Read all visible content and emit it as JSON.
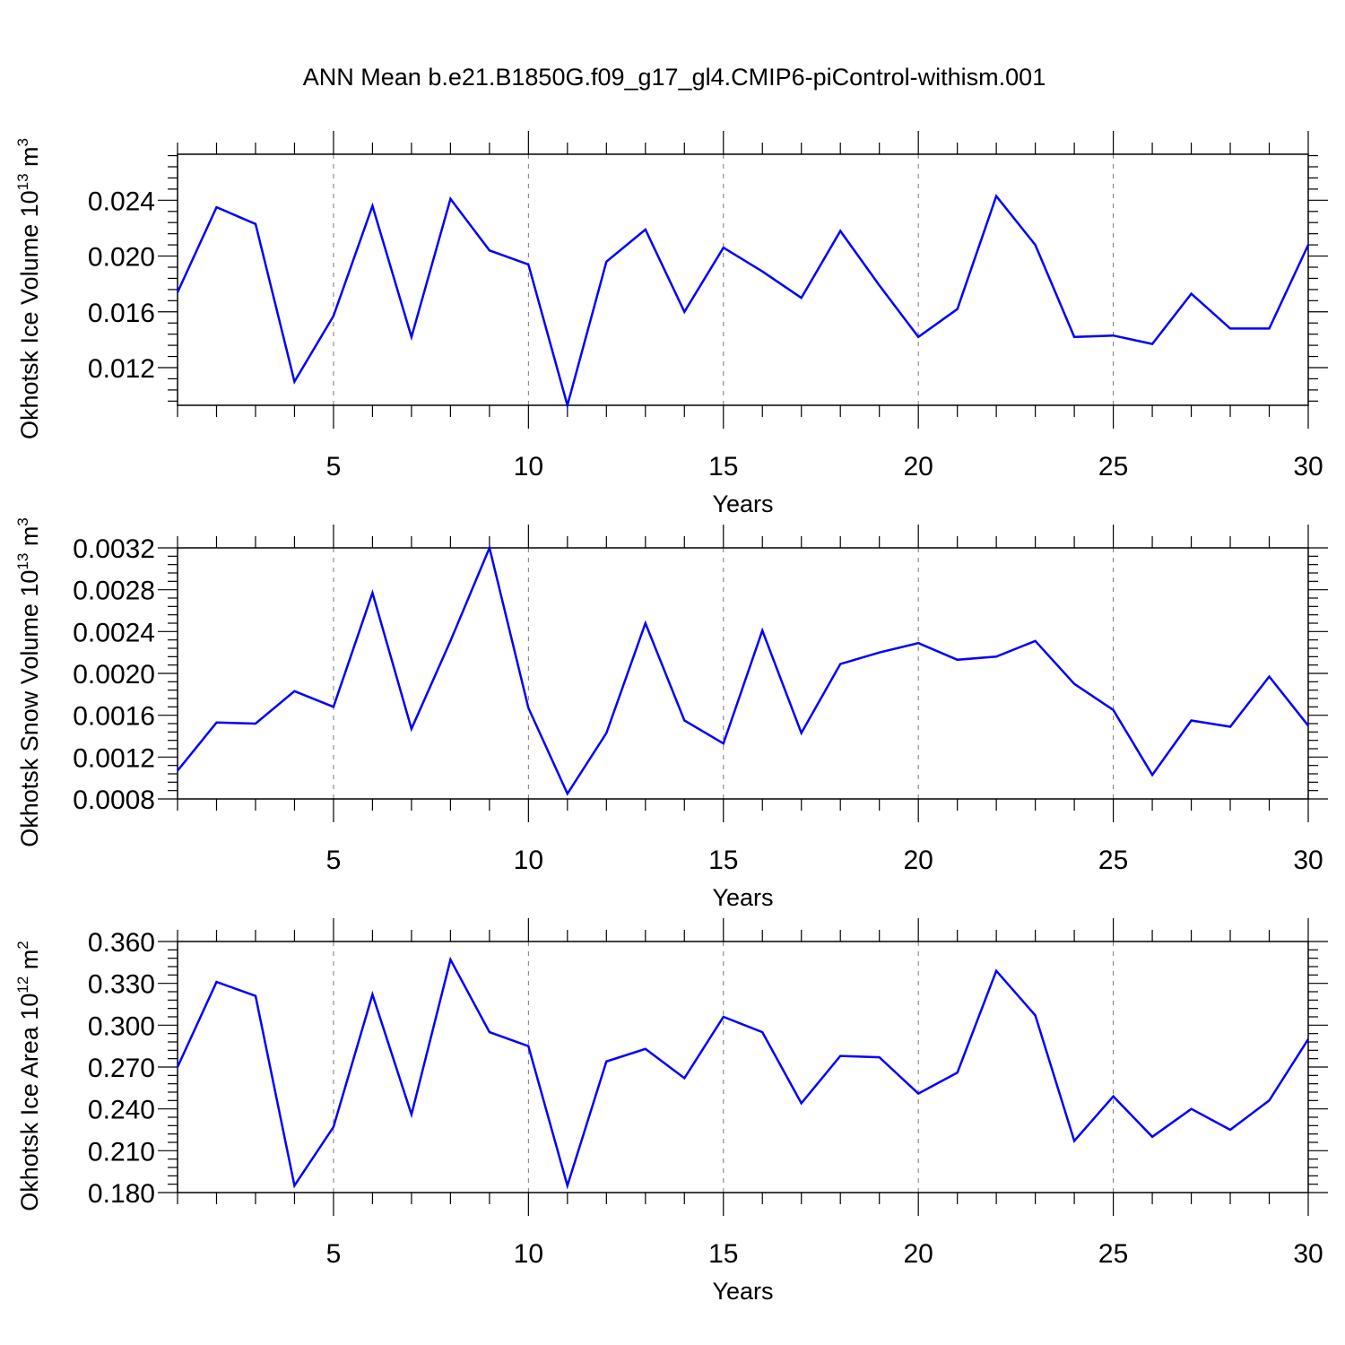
{
  "title": "ANN Mean b.e21.B1850G.f09_g17_gl4.CMIP6-piControl-withism.001",
  "colors": {
    "line": "#0000ff",
    "axis": "#000000",
    "grid": "#777777"
  },
  "chart_data": [
    {
      "type": "line",
      "title": "",
      "xlabel": "Years",
      "ylabel": "Okhotsk Ice Volume 10",
      "ylabel_exp": "13",
      "ylabel_unit": " m",
      "ylabel_unit_exp": "3",
      "xlim": [
        1,
        30
      ],
      "ylim": [
        0.0093,
        0.0273
      ],
      "xticks": [
        5,
        10,
        15,
        20,
        25,
        30
      ],
      "yticks": [
        0.012,
        0.016,
        0.02,
        0.024
      ],
      "ytick_labels": [
        "0.012",
        "0.016",
        "0.020",
        "0.024"
      ],
      "grid": "vertical dashed at major x ticks",
      "x": [
        1,
        2,
        3,
        4,
        5,
        6,
        7,
        8,
        9,
        10,
        11,
        12,
        13,
        14,
        15,
        16,
        17,
        18,
        19,
        20,
        21,
        22,
        23,
        24,
        25,
        26,
        27,
        28,
        29,
        30
      ],
      "series": [
        {
          "values": [
            0.0174,
            0.0235,
            0.0223,
            0.011,
            0.0157,
            0.0236,
            0.0142,
            0.0241,
            0.0204,
            0.0194,
            0.0093,
            0.0196,
            0.0219,
            0.016,
            0.0206,
            0.0189,
            0.017,
            0.0218,
            0.0179,
            0.0142,
            0.0162,
            0.0243,
            0.0208,
            0.0142,
            0.0143,
            0.0137,
            0.0173,
            0.0148,
            0.0148,
            0.0208
          ]
        }
      ]
    },
    {
      "type": "line",
      "title": "",
      "xlabel": "Years",
      "ylabel": "Okhotsk Snow Volume 10",
      "ylabel_exp": "13",
      "ylabel_unit": " m",
      "ylabel_unit_exp": "3",
      "xlim": [
        1,
        30
      ],
      "ylim": [
        0.0008,
        0.0032
      ],
      "xticks": [
        5,
        10,
        15,
        20,
        25,
        30
      ],
      "yticks": [
        0.0008,
        0.0012,
        0.0016,
        0.002,
        0.0024,
        0.0028,
        0.0032
      ],
      "ytick_labels": [
        "0.0008",
        "0.0012",
        "0.0016",
        "0.0020",
        "0.0024",
        "0.0028",
        "0.0032"
      ],
      "grid": "vertical dashed at major x ticks",
      "x": [
        1,
        2,
        3,
        4,
        5,
        6,
        7,
        8,
        9,
        10,
        11,
        12,
        13,
        14,
        15,
        16,
        17,
        18,
        19,
        20,
        21,
        22,
        23,
        24,
        25,
        26,
        27,
        28,
        29,
        30
      ],
      "series": [
        {
          "values": [
            0.00107,
            0.00153,
            0.00152,
            0.00183,
            0.00168,
            0.00277,
            0.00147,
            0.00231,
            0.0032,
            0.00167,
            0.00085,
            0.00143,
            0.00248,
            0.00155,
            0.00133,
            0.00241,
            0.00143,
            0.00209,
            0.0022,
            0.00229,
            0.00213,
            0.00216,
            0.00231,
            0.0019,
            0.00165,
            0.00103,
            0.00155,
            0.00149,
            0.00197,
            0.0015
          ]
        }
      ]
    },
    {
      "type": "line",
      "title": "",
      "xlabel": "Years",
      "ylabel": "Okhotsk Ice Area 10",
      "ylabel_exp": "12",
      "ylabel_unit": " m",
      "ylabel_unit_exp": "2",
      "xlim": [
        1,
        30
      ],
      "ylim": [
        0.18,
        0.36
      ],
      "xticks": [
        5,
        10,
        15,
        20,
        25,
        30
      ],
      "yticks": [
        0.18,
        0.21,
        0.24,
        0.27,
        0.3,
        0.33,
        0.36
      ],
      "ytick_labels": [
        "0.180",
        "0.210",
        "0.240",
        "0.270",
        "0.300",
        "0.330",
        "0.360"
      ],
      "grid": "vertical dashed at major x ticks",
      "x": [
        1,
        2,
        3,
        4,
        5,
        6,
        7,
        8,
        9,
        10,
        11,
        12,
        13,
        14,
        15,
        16,
        17,
        18,
        19,
        20,
        21,
        22,
        23,
        24,
        25,
        26,
        27,
        28,
        29,
        30
      ],
      "series": [
        {
          "values": [
            0.27,
            0.331,
            0.321,
            0.185,
            0.227,
            0.322,
            0.236,
            0.347,
            0.295,
            0.285,
            0.185,
            0.274,
            0.283,
            0.262,
            0.306,
            0.295,
            0.244,
            0.278,
            0.277,
            0.251,
            0.266,
            0.339,
            0.307,
            0.217,
            0.249,
            0.22,
            0.24,
            0.225,
            0.246,
            0.29
          ]
        }
      ]
    }
  ]
}
